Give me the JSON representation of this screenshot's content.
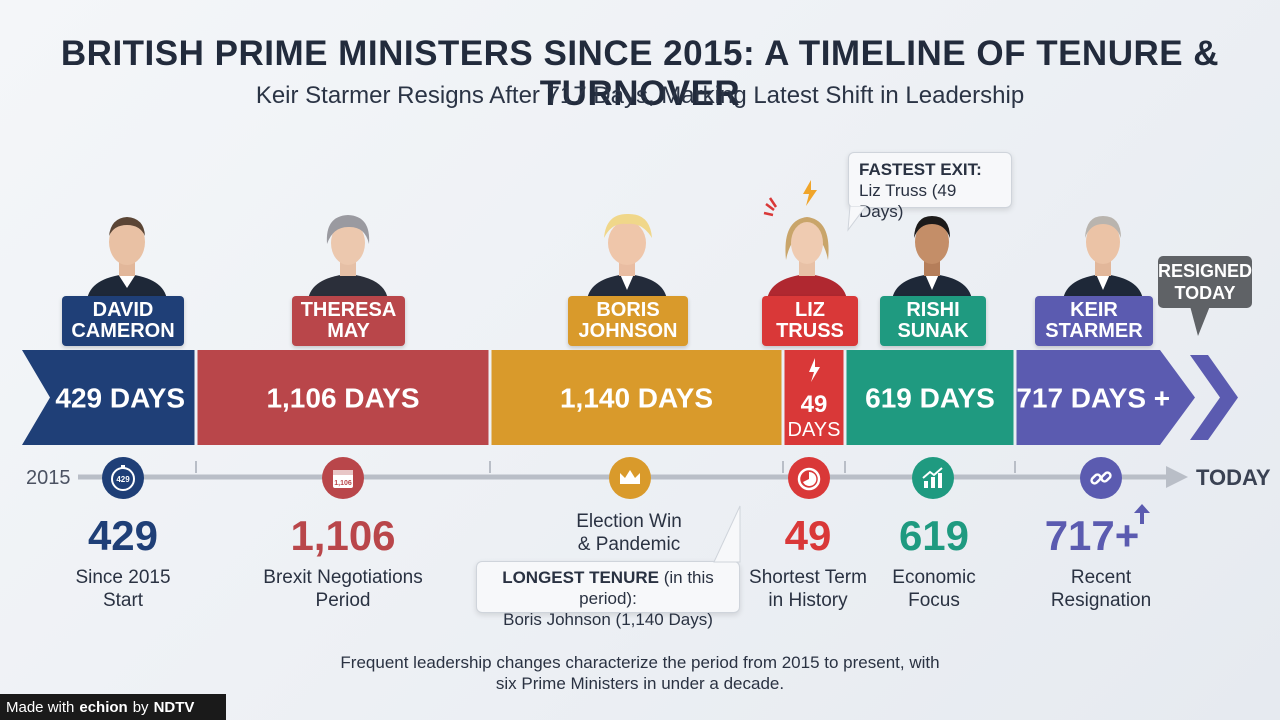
{
  "header": {
    "title": "BRITISH PRIME MINISTERS SINCE 2015: A TIMELINE OF TENURE & TURNOVER",
    "subtitle": "Keir Starmer Resigns After 717 Days, Marking Latest Shift in Leadership"
  },
  "chart_data": {
    "type": "bar",
    "orientation": "horizontal-timeline",
    "x_start_label": "2015",
    "x_end_label": "TODAY",
    "categories": [
      "DAVID CAMERON",
      "THERESA MAY",
      "BORIS JOHNSON",
      "LIZ TRUSS",
      "RISHI SUNAK",
      "KEIR STARMER"
    ],
    "values": [
      429,
      1106,
      1140,
      49,
      619,
      717
    ],
    "bar_labels": [
      "429 DAYS",
      "1,106 DAYS",
      "1,140 DAYS",
      "49",
      "619 DAYS",
      "717 DAYS +"
    ],
    "bar_sublabel_truss": "DAYS",
    "colors": [
      "#1f3f77",
      "#b9464a",
      "#d99a2b",
      "#d93838",
      "#1f9a80",
      "#5b5bb0"
    ]
  },
  "leaders": [
    {
      "first": "DAVID",
      "last": "CAMERON",
      "color": "#1f3f77",
      "stat": "429",
      "stat_color": "#1f3f77",
      "label1": "Since 2015",
      "label2": "Start",
      "icon": "stopwatch-icon",
      "icon_text": "429"
    },
    {
      "first": "THERESA",
      "last": "MAY",
      "color": "#b9464a",
      "stat": "1,106",
      "stat_color": "#b9464a",
      "label1": "Brexit Negotiations",
      "label2": "Period",
      "icon": "calendar-icon",
      "icon_text": "1,106"
    },
    {
      "first": "BORIS",
      "last": "JOHNSON",
      "color": "#d99a2b",
      "stat": "",
      "stat_color": "#d99a2b",
      "label1": "Election Win",
      "label2": "& Pandemic",
      "icon": "crown-icon",
      "icon_text": ""
    },
    {
      "first": "LIZ",
      "last": "TRUSS",
      "color": "#d93838",
      "stat": "49",
      "stat_color": "#d93838",
      "label1": "Shortest Term",
      "label2": "in History",
      "icon": "timer-icon",
      "icon_text": ""
    },
    {
      "first": "RISHI",
      "last": "SUNAK",
      "color": "#1f9a80",
      "stat": "619",
      "stat_color": "#1f9a80",
      "label1": "Economic",
      "label2": "Focus",
      "icon": "growth-chart-icon",
      "icon_text": ""
    },
    {
      "first": "KEIR",
      "last": "STARMER",
      "color": "#5b5bb0",
      "stat": "717+",
      "stat_color": "#5b5bb0",
      "label1": "Recent",
      "label2": "Resignation",
      "icon": "broken-link-icon",
      "icon_text": ""
    }
  ],
  "callouts": {
    "fastest_title": "FASTEST EXIT:",
    "fastest_body": "Liz Truss (49 Days)",
    "longest_title": "LONGEST TENURE",
    "longest_qualifier": "(in this period):",
    "longest_body": "Boris Johnson (1,140 Days)",
    "resigned_line1": "RESIGNED",
    "resigned_line2": "TODAY"
  },
  "footer": {
    "text": "Frequent leadership changes characterize the period from 2015 to present, with six Prime Ministers in under a decade.",
    "badge_prefix": "Made with",
    "badge_brand": "echion",
    "badge_by": "by",
    "badge_org": "NDTV"
  }
}
